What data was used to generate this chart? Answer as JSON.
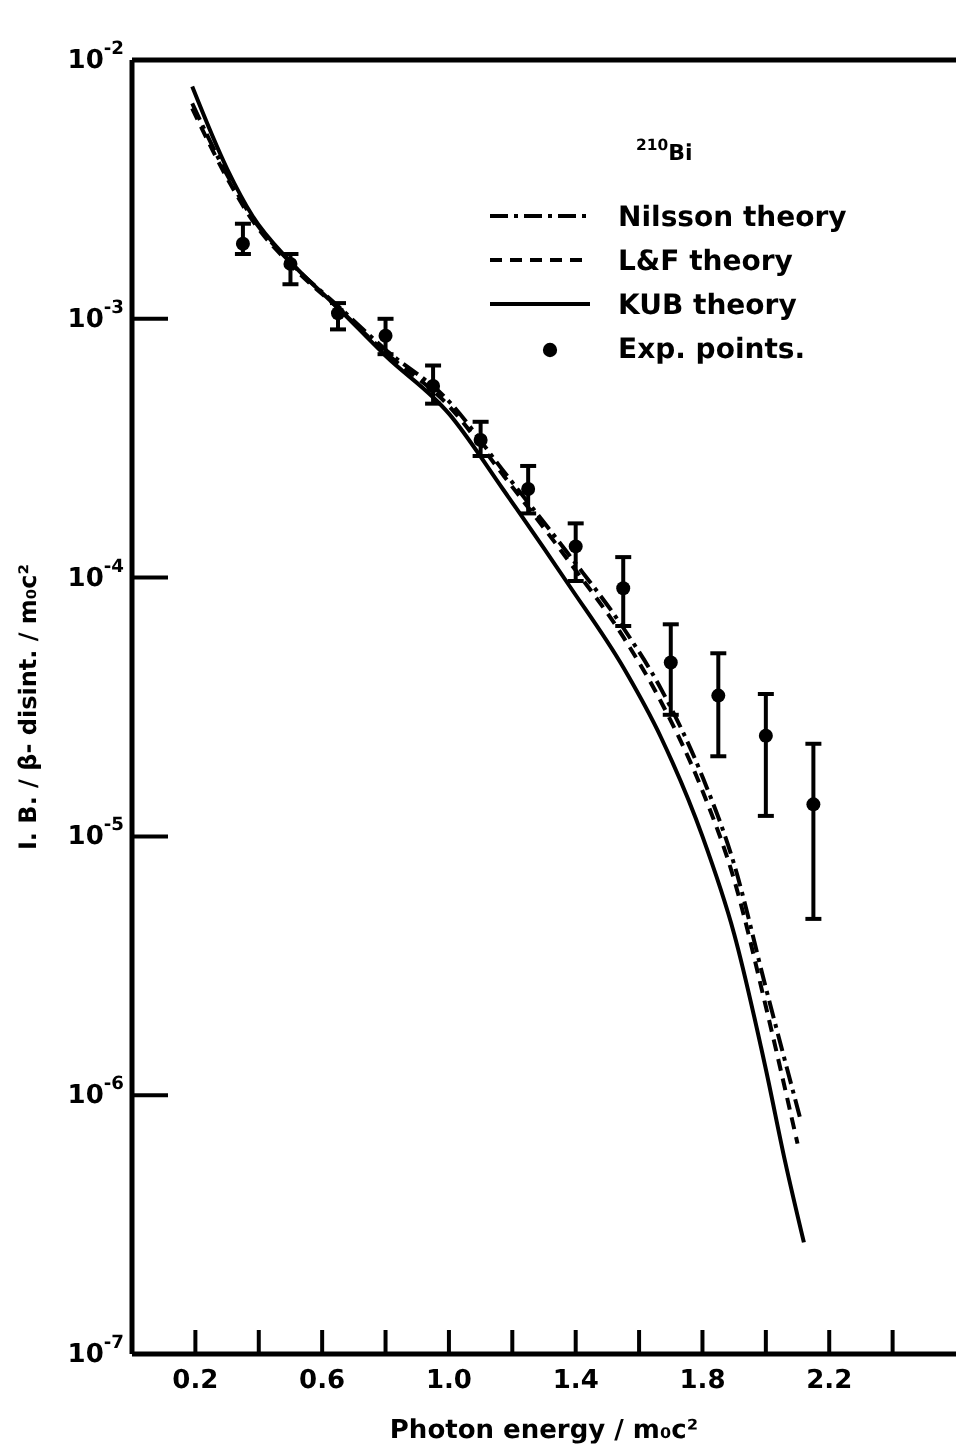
{
  "chart_data": {
    "type": "line",
    "xlabel": "Photon energy / m₀c²",
    "ylabel": "I. B. / β- disint. / m₀c²",
    "annotations": [
      "$^{210}$Bi"
    ],
    "log": "y",
    "legend": "top right",
    "grid": false,
    "xlim": [
      0,
      2.6
    ],
    "ylim": [
      1e-07,
      0.01
    ],
    "xticks": [
      0.2,
      {
        "value": 0.4,
        "label": null
      },
      0.6,
      {
        "value": 0.8,
        "label": null
      },
      {
        "value": 1,
        "label": "1.0"
      },
      {
        "value": 1.2,
        "label": null
      },
      1.4,
      {
        "value": 1.6,
        "label": null
      },
      1.8,
      {
        "value": 2,
        "label": null
      },
      2.2,
      {
        "value": 2.4,
        "label": null
      }
    ],
    "yticks": [
      {
        "value": 1e-07,
        "label": "10$^{-7}$"
      },
      {
        "value": 1e-06,
        "label": "10$^{-6}$"
      },
      {
        "value": 1e-05,
        "label": "10$^{-5}$"
      },
      {
        "value": 0.0001,
        "label": "10$^{-4}$"
      },
      {
        "value": 0.001,
        "label": "10$^{-3}$"
      },
      {
        "value": 0.01,
        "label": "10$^{-2}$"
      }
    ],
    "series": [
      {
        "name": "Nilsson theory",
        "line_style": "dashdot",
        "color": "#000000",
        "x": [
          0.19,
          0.3,
          0.38,
          0.5,
          0.65,
          0.8,
          1.0,
          1.17,
          1.38,
          1.55,
          1.67,
          1.8,
          1.9,
          2.0,
          2.11
        ],
        "values": [
          0.0068,
          0.0036,
          0.00245,
          0.00165,
          0.00112,
          0.00076,
          0.00048,
          0.00026,
          0.000122,
          6.4e-05,
          3.7e-05,
          1.7e-05,
          7.8e-06,
          2.6e-06,
          8e-07
        ]
      },
      {
        "name": "L&F theory",
        "line_style": "dashed",
        "color": "#000000",
        "x": [
          0.19,
          0.3,
          0.38,
          0.5,
          0.65,
          0.8,
          1.0,
          1.17,
          1.38,
          1.55,
          1.67,
          1.8,
          1.9,
          2.0,
          2.1
        ],
        "values": [
          0.0065,
          0.0035,
          0.0024,
          0.00162,
          0.0011,
          0.00074,
          0.00046,
          0.00025,
          0.000115,
          5.9e-05,
          3.3e-05,
          1.5e-05,
          6.8e-06,
          2.2e-06,
          6.5e-07
        ]
      },
      {
        "name": "KUB theory",
        "line_style": "solid",
        "color": "#000000",
        "x": [
          0.19,
          0.3,
          0.38,
          0.5,
          0.65,
          0.8,
          1.0,
          1.17,
          1.38,
          1.55,
          1.67,
          1.8,
          1.9,
          2.0,
          2.06,
          2.12
        ],
        "values": [
          0.0079,
          0.0038,
          0.0025,
          0.00166,
          0.0011,
          0.00072,
          0.00043,
          0.00022,
          9.3e-05,
          4.5e-05,
          2.4e-05,
          1e-05,
          4.2e-06,
          1.26e-06,
          5.6e-07,
          2.7e-07
        ]
      },
      {
        "name": "Exp. points.",
        "type": "scatter",
        "marker": "circle",
        "color": "#000000",
        "x": [
          0.35,
          0.5,
          0.65,
          0.8,
          0.95,
          1.1,
          1.25,
          1.4,
          1.55,
          1.7,
          1.85,
          2.0,
          2.15
        ],
        "values": [
          0.00195,
          0.00163,
          0.00105,
          0.00086,
          0.00055,
          0.00034,
          0.00022,
          0.000132,
          9.1e-05,
          4.7e-05,
          3.5e-05,
          2.45e-05,
          1.33e-05
        ],
        "errors": [
          [
            0.00178,
            0.00233
          ],
          [
            0.00136,
            0.00178
          ],
          [
            0.00091,
            0.00115
          ],
          [
            0.00073,
            0.001
          ],
          [
            0.00047,
            0.00066
          ],
          [
            0.000295,
            0.0004
          ],
          [
            0.000177,
            0.00027
          ],
          [
            9.7e-05,
            0.000162
          ],
          [
            6.5e-05,
            0.00012
          ],
          [
            2.95e-05,
            6.6e-05
          ],
          [
            2.04e-05,
            5.1e-05
          ],
          [
            1.2e-05,
            3.55e-05
          ],
          [
            4.8e-06,
            2.28e-05
          ]
        ]
      }
    ]
  }
}
